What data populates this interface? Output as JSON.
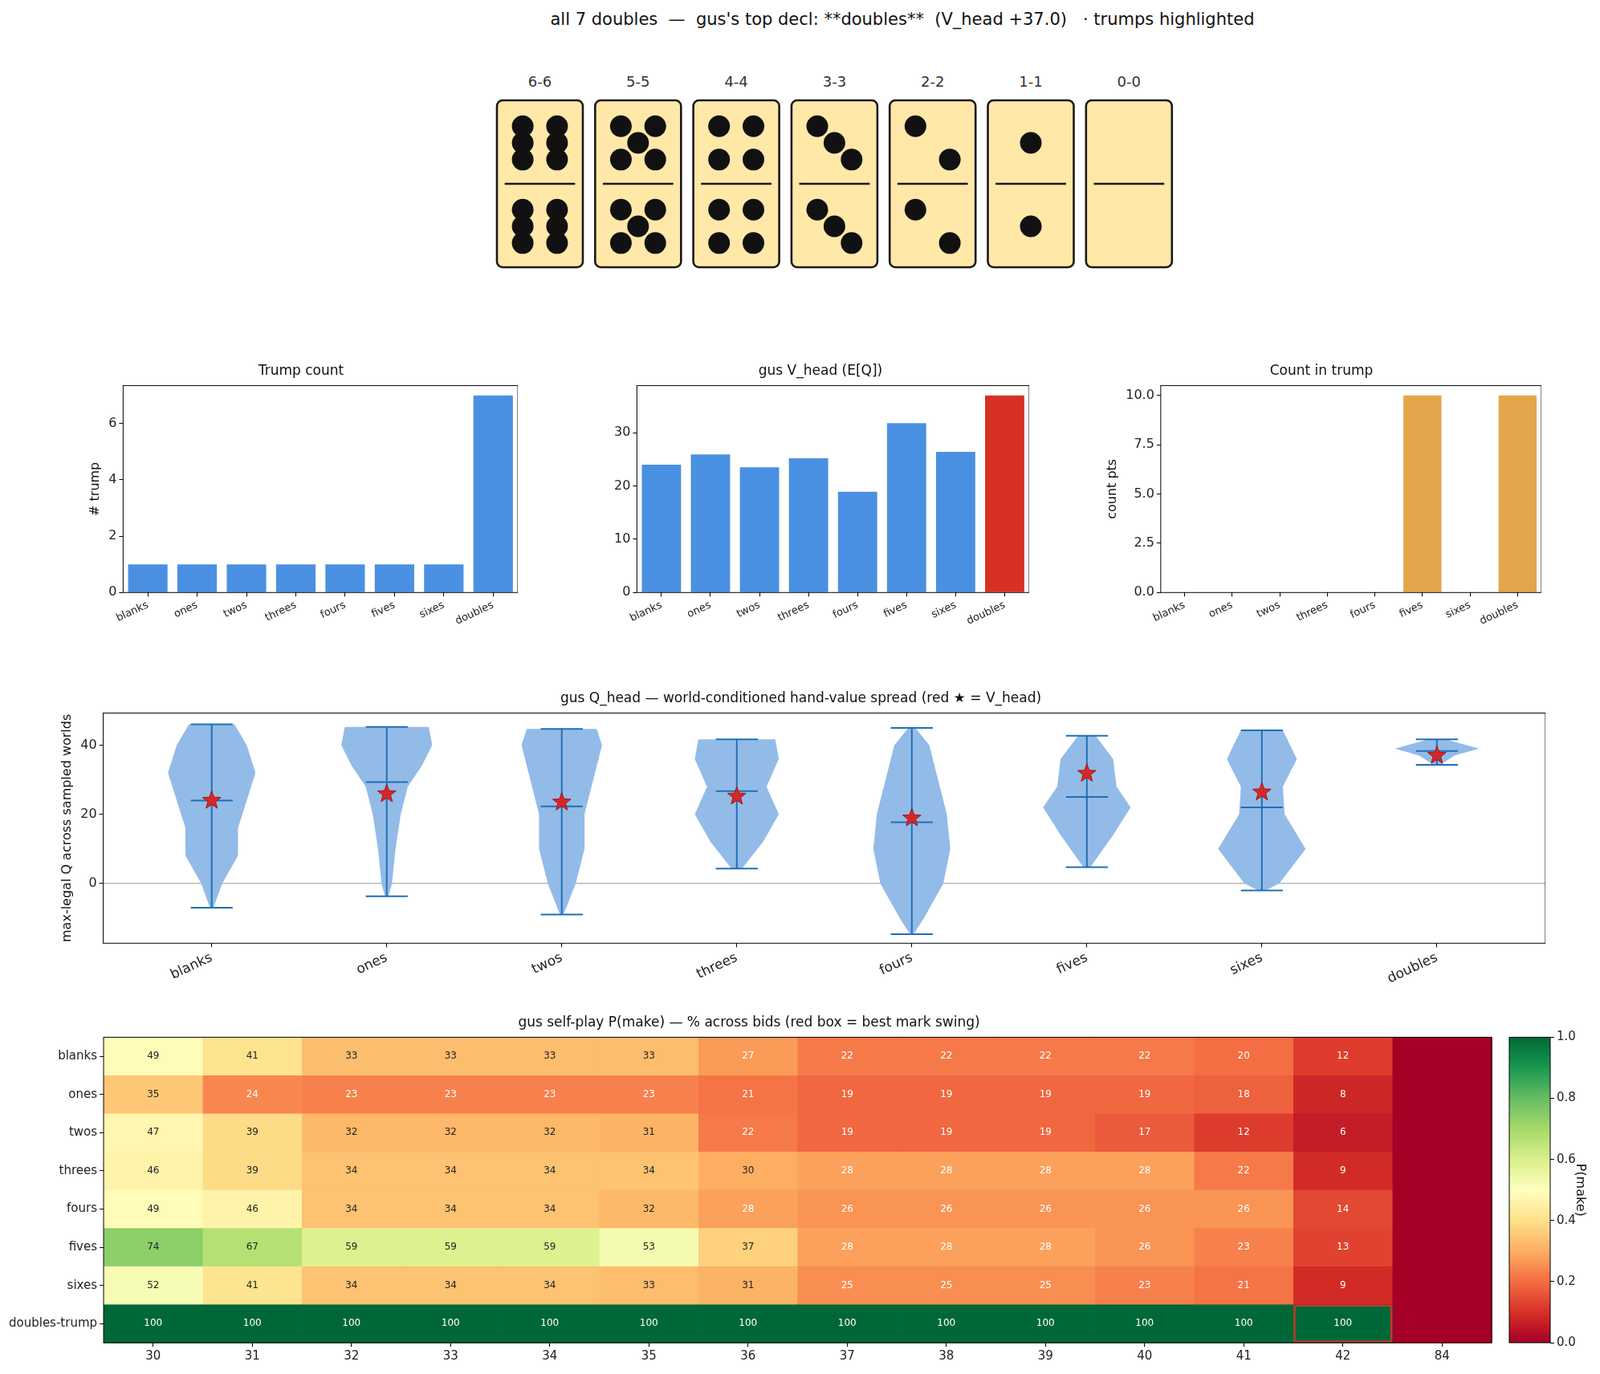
{
  "title": "all 7 doubles  —  gus's top decl: **doubles**  (V_head +37.0)   · trumps highlighted",
  "dominoes": [
    {
      "label": "6-6",
      "pips": [
        6,
        6
      ]
    },
    {
      "label": "5-5",
      "pips": [
        5,
        5
      ]
    },
    {
      "label": "4-4",
      "pips": [
        4,
        4
      ]
    },
    {
      "label": "3-3",
      "pips": [
        3,
        3
      ]
    },
    {
      "label": "2-2",
      "pips": [
        2,
        2
      ]
    },
    {
      "label": "1-1",
      "pips": [
        1,
        1
      ]
    },
    {
      "label": "0-0",
      "pips": [
        0,
        0
      ]
    }
  ],
  "chart_data": [
    {
      "type": "bar",
      "title": "Trump count",
      "categories": [
        "blanks",
        "ones",
        "twos",
        "threes",
        "fours",
        "fives",
        "sixes",
        "doubles"
      ],
      "values": [
        1,
        1,
        1,
        1,
        1,
        1,
        1,
        7
      ],
      "color": "#4a90e2",
      "y_label": "# trump",
      "ylim": [
        0,
        7.35
      ],
      "yticks": [
        0,
        2,
        4,
        6
      ],
      "grid": false
    },
    {
      "type": "bar",
      "title": "gus V_head (E[Q])",
      "categories": [
        "blanks",
        "ones",
        "twos",
        "threes",
        "fours",
        "fives",
        "sixes",
        "doubles"
      ],
      "values": [
        24,
        25.9,
        23.5,
        25.2,
        18.9,
        31.8,
        26.4,
        37
      ],
      "colors": [
        "#4a90e2",
        "#4a90e2",
        "#4a90e2",
        "#4a90e2",
        "#4a90e2",
        "#4a90e2",
        "#4a90e2",
        "#d93025"
      ],
      "ylim": [
        0,
        38.85
      ],
      "yticks": [
        0,
        10,
        20,
        30
      ],
      "grid": false
    },
    {
      "type": "bar",
      "title": "Count in trump",
      "categories": [
        "blanks",
        "ones",
        "twos",
        "threes",
        "fours",
        "fives",
        "sixes",
        "doubles"
      ],
      "values": [
        0,
        0,
        0,
        0,
        0,
        10,
        0,
        10
      ],
      "color": "#e3a64a",
      "y_label": "count pts",
      "ylim": [
        0,
        10.5
      ],
      "yticks": [
        {
          "value": 0,
          "label": "0.0"
        },
        {
          "value": 2.5,
          "label": "2.5"
        },
        {
          "value": 5,
          "label": "5.0"
        },
        {
          "value": 7.5,
          "label": "7.5"
        },
        {
          "value": 10,
          "label": "10.0"
        }
      ],
      "grid": false
    },
    {
      "type": "violin",
      "title": "gus Q_head — world-conditioned hand-value spread (red ★ = V_head)",
      "categories": [
        "blanks",
        "ones",
        "twos",
        "threes",
        "fours",
        "fives",
        "sixes",
        "doubles"
      ],
      "y_label": "max-legal Q across sampled worlds",
      "ylim": [
        -17.3,
        49.3
      ],
      "yticks": [
        0,
        20,
        40
      ],
      "hline": 0,
      "grid": false,
      "color": "#93bbe8",
      "violins": [
        {
          "min": -7,
          "max": 46,
          "median": 24,
          "mean": 24,
          "density_profile": [
            [
              46,
              0.13
            ],
            [
              40,
              0.2
            ],
            [
              32,
              0.25
            ],
            [
              24,
              0.2
            ],
            [
              16,
              0.15
            ],
            [
              8,
              0.15
            ],
            [
              0,
              0.06
            ],
            [
              -7,
              0.01
            ]
          ]
        },
        {
          "min": -3.7,
          "max": 45.3,
          "median": 29.3,
          "mean": 25.9,
          "density_profile": [
            [
              45.3,
              0.24
            ],
            [
              40,
              0.26
            ],
            [
              34,
              0.2
            ],
            [
              28,
              0.12
            ],
            [
              20,
              0.08
            ],
            [
              10,
              0.05
            ],
            [
              0,
              0.03
            ],
            [
              -3.7,
              0.01
            ]
          ]
        },
        {
          "min": -9,
          "max": 44.7,
          "median": 22.3,
          "mean": 23.5,
          "density_profile": [
            [
              44.7,
              0.2
            ],
            [
              40,
              0.23
            ],
            [
              30,
              0.18
            ],
            [
              20,
              0.13
            ],
            [
              10,
              0.13
            ],
            [
              0,
              0.08
            ],
            [
              -9,
              0.01
            ]
          ]
        },
        {
          "min": 4.3,
          "max": 41.7,
          "median": 26.7,
          "mean": 25.2,
          "density_profile": [
            [
              41.7,
              0.22
            ],
            [
              36,
              0.24
            ],
            [
              28,
              0.17
            ],
            [
              20,
              0.24
            ],
            [
              12,
              0.15
            ],
            [
              4.3,
              0.03
            ]
          ]
        },
        {
          "min": -14.7,
          "max": 45,
          "median": 17.7,
          "mean": 18.9,
          "density_profile": [
            [
              45,
              0.02
            ],
            [
              40,
              0.1
            ],
            [
              30,
              0.15
            ],
            [
              20,
              0.2
            ],
            [
              10,
              0.22
            ],
            [
              0,
              0.18
            ],
            [
              -10,
              0.07
            ],
            [
              -14.7,
              0.01
            ]
          ]
        },
        {
          "min": 4.7,
          "max": 42.7,
          "median": 25,
          "mean": 31.8,
          "density_profile": [
            [
              42.7,
              0.05
            ],
            [
              36,
              0.15
            ],
            [
              28,
              0.17
            ],
            [
              22,
              0.25
            ],
            [
              14,
              0.15
            ],
            [
              4.7,
              0.02
            ]
          ]
        },
        {
          "min": -2,
          "max": 44.3,
          "median": 22,
          "mean": 26.4,
          "density_profile": [
            [
              44.3,
              0.12
            ],
            [
              36,
              0.2
            ],
            [
              28,
              0.12
            ],
            [
              20,
              0.13
            ],
            [
              10,
              0.25
            ],
            [
              0,
              0.1
            ],
            [
              -2,
              0.02
            ]
          ]
        },
        {
          "min": 34.3,
          "max": 41.7,
          "median": 38.3,
          "mean": 37,
          "density_profile": [
            [
              41.7,
              0.05
            ],
            [
              39,
              0.24
            ],
            [
              37,
              0.1
            ],
            [
              34.3,
              0.02
            ]
          ]
        }
      ]
    },
    {
      "type": "heatmap",
      "title": "gus self-play P(make) — % across bids (red box = best mark swing)",
      "rows": [
        "blanks",
        "ones",
        "twos",
        "threes",
        "fours",
        "fives",
        "sixes",
        "doubles-trump"
      ],
      "categories": [
        30,
        31,
        32,
        33,
        34,
        35,
        36,
        37,
        38,
        39,
        40,
        41,
        42,
        84
      ],
      "data_labels": true,
      "cells": [
        [
          0.49,
          0.41,
          0.33,
          0.33,
          0.33,
          0.33,
          0.27,
          0.22,
          0.22,
          0.22,
          0.22,
          0.2,
          0.12,
          0
        ],
        [
          0.35,
          0.24,
          0.23,
          0.23,
          0.23,
          0.23,
          0.21,
          0.19,
          0.19,
          0.19,
          0.19,
          0.18,
          0.08,
          0
        ],
        [
          0.47,
          0.39,
          0.32,
          0.32,
          0.32,
          0.31,
          0.22,
          0.19,
          0.19,
          0.19,
          0.17,
          0.12,
          0.06,
          0
        ],
        [
          0.46,
          0.39,
          0.34,
          0.34,
          0.34,
          0.34,
          0.3,
          0.28,
          0.28,
          0.28,
          0.28,
          0.22,
          0.09,
          0
        ],
        [
          0.49,
          0.46,
          0.34,
          0.34,
          0.34,
          0.32,
          0.28,
          0.26,
          0.26,
          0.26,
          0.26,
          0.26,
          0.14,
          0
        ],
        [
          0.74,
          0.67,
          0.59,
          0.59,
          0.59,
          0.53,
          0.37,
          0.28,
          0.28,
          0.28,
          0.26,
          0.23,
          0.13,
          0
        ],
        [
          0.52,
          0.41,
          0.34,
          0.34,
          0.34,
          0.33,
          0.31,
          0.25,
          0.25,
          0.25,
          0.23,
          0.21,
          0.09,
          0
        ],
        [
          1,
          1,
          1,
          1,
          1,
          1,
          1,
          1,
          1,
          1,
          1,
          1,
          1,
          0
        ]
      ],
      "value_labels": [
        [
          "49",
          "41",
          "33",
          "33",
          "33",
          "33",
          "27",
          "22",
          "22",
          "22",
          "22",
          "20",
          "12",
          null
        ],
        [
          "35",
          "24",
          "23",
          "23",
          "23",
          "23",
          "21",
          "19",
          "19",
          "19",
          "19",
          "18",
          "8",
          null
        ],
        [
          "47",
          "39",
          "32",
          "32",
          "32",
          "31",
          "22",
          "19",
          "19",
          "19",
          "17",
          "12",
          "6",
          null
        ],
        [
          "46",
          "39",
          "34",
          "34",
          "34",
          "34",
          "30",
          "28",
          "28",
          "28",
          "28",
          "22",
          "9",
          null
        ],
        [
          "49",
          "46",
          "34",
          "34",
          "34",
          "32",
          "28",
          "26",
          "26",
          "26",
          "26",
          "26",
          "14",
          null
        ],
        [
          "74",
          "67",
          "59",
          "59",
          "59",
          "53",
          "37",
          "28",
          "28",
          "28",
          "26",
          "23",
          "13",
          null
        ],
        [
          "52",
          "41",
          "34",
          "34",
          "34",
          "33",
          "31",
          "25",
          "25",
          "25",
          "23",
          "21",
          "9",
          null
        ],
        [
          "100",
          "100",
          "100",
          "100",
          "100",
          "100",
          "100",
          "100",
          "100",
          "100",
          "100",
          "100",
          "100",
          null
        ]
      ],
      "best": {
        "row": "doubles-trump",
        "category": 42
      },
      "colorbar": {
        "label": "P(make)",
        "range": [
          0,
          1
        ],
        "ticks": [
          {
            "value": 0,
            "label": "0.0"
          },
          {
            "value": 0.2,
            "label": "0.2"
          },
          {
            "value": 0.4,
            "label": "0.4"
          },
          {
            "value": 0.6,
            "label": "0.6"
          },
          {
            "value": 0.8,
            "label": "0.8"
          },
          {
            "value": 1,
            "label": "1.0"
          }
        ]
      }
    }
  ]
}
